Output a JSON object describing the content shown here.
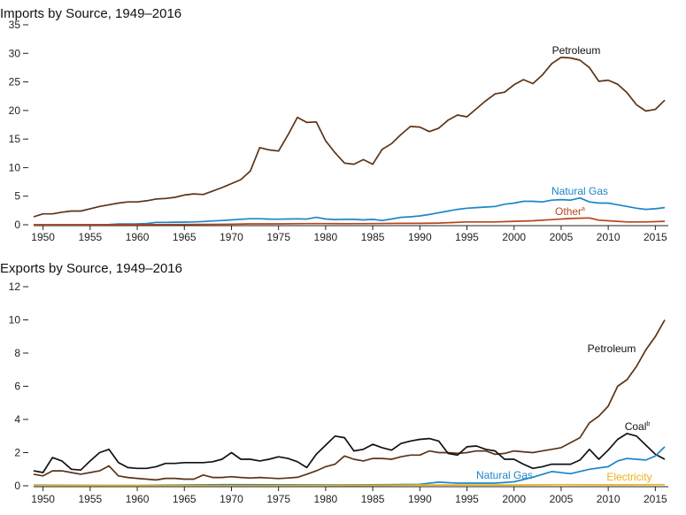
{
  "chart_data": [
    {
      "type": "line",
      "title": "Imports by Source, 1949–2016",
      "xlabel": "",
      "ylabel": "",
      "xlim": [
        1949,
        2016
      ],
      "ylim": [
        0,
        35
      ],
      "yticks": [
        0,
        5,
        10,
        15,
        20,
        25,
        30,
        35
      ],
      "xticks": [
        1950,
        1955,
        1960,
        1965,
        1970,
        1975,
        1980,
        1985,
        1990,
        1995,
        2000,
        2005,
        2010,
        2015
      ],
      "grid": false,
      "series": [
        {
          "name": "Petroleum",
          "color": "#5a3418",
          "x": [
            1949,
            1950,
            1951,
            1952,
            1953,
            1954,
            1955,
            1956,
            1957,
            1958,
            1959,
            1960,
            1961,
            1962,
            1963,
            1964,
            1965,
            1966,
            1967,
            1968,
            1969,
            1970,
            1971,
            1972,
            1973,
            1974,
            1975,
            1976,
            1977,
            1978,
            1979,
            1980,
            1981,
            1982,
            1983,
            1984,
            1985,
            1986,
            1987,
            1988,
            1989,
            1990,
            1991,
            1992,
            1993,
            1994,
            1995,
            1996,
            1997,
            1998,
            1999,
            2000,
            2001,
            2002,
            2003,
            2004,
            2005,
            2006,
            2007,
            2008,
            2009,
            2010,
            2011,
            2012,
            2013,
            2014,
            2015,
            2016
          ],
          "values": [
            1.4,
            1.9,
            1.9,
            2.2,
            2.4,
            2.4,
            2.8,
            3.2,
            3.5,
            3.8,
            4.0,
            4.0,
            4.2,
            4.5,
            4.6,
            4.8,
            5.2,
            5.4,
            5.3,
            5.9,
            6.5,
            7.2,
            7.9,
            9.4,
            13.5,
            13.1,
            12.9,
            15.7,
            18.8,
            17.9,
            18.0,
            14.7,
            12.6,
            10.8,
            10.6,
            11.4,
            10.6,
            13.2,
            14.2,
            15.8,
            17.2,
            17.1,
            16.3,
            16.9,
            18.3,
            19.2,
            18.9,
            20.3,
            21.7,
            22.9,
            23.2,
            24.5,
            25.4,
            24.7,
            26.2,
            28.2,
            29.3,
            29.2,
            28.8,
            27.5,
            25.1,
            25.3,
            24.6,
            23.1,
            21.0,
            19.9,
            20.2,
            21.8
          ]
        },
        {
          "name": "Natural Gas",
          "color": "#1b86c7",
          "x": [
            1949,
            1950,
            1951,
            1952,
            1953,
            1954,
            1955,
            1956,
            1957,
            1958,
            1959,
            1960,
            1961,
            1962,
            1963,
            1964,
            1965,
            1966,
            1967,
            1968,
            1969,
            1970,
            1971,
            1972,
            1973,
            1974,
            1975,
            1976,
            1977,
            1978,
            1979,
            1980,
            1981,
            1982,
            1983,
            1984,
            1985,
            1986,
            1987,
            1988,
            1989,
            1990,
            1991,
            1992,
            1993,
            1994,
            1995,
            1996,
            1997,
            1998,
            1999,
            2000,
            2001,
            2002,
            2003,
            2004,
            2005,
            2006,
            2007,
            2008,
            2009,
            2010,
            2011,
            2012,
            2013,
            2014,
            2015,
            2016
          ],
          "values": [
            0.0,
            0.0,
            0.0,
            0.0,
            0.0,
            0.0,
            0.01,
            0.01,
            0.04,
            0.14,
            0.14,
            0.16,
            0.22,
            0.42,
            0.42,
            0.45,
            0.47,
            0.49,
            0.58,
            0.67,
            0.74,
            0.85,
            0.96,
            1.05,
            1.06,
            0.99,
            0.98,
            1.0,
            1.04,
            0.99,
            1.3,
            1.01,
            0.92,
            0.95,
            0.94,
            0.85,
            0.95,
            0.75,
            1.0,
            1.3,
            1.4,
            1.55,
            1.8,
            2.1,
            2.4,
            2.7,
            2.9,
            3.0,
            3.1,
            3.2,
            3.6,
            3.8,
            4.1,
            4.1,
            4.0,
            4.3,
            4.4,
            4.3,
            4.7,
            4.0,
            3.8,
            3.8,
            3.5,
            3.2,
            2.9,
            2.7,
            2.8,
            3.0
          ]
        },
        {
          "name": "Other",
          "name_suffix": "a",
          "color": "#b5451b",
          "x": [
            1949,
            1955,
            1960,
            1965,
            1970,
            1972,
            1975,
            1978,
            1980,
            1982,
            1985,
            1988,
            1990,
            1992,
            1995,
            1998,
            2000,
            2002,
            2004,
            2006,
            2008,
            2009,
            2010,
            2012,
            2014,
            2016
          ],
          "values": [
            0.0,
            0.01,
            0.02,
            0.05,
            0.1,
            0.15,
            0.15,
            0.2,
            0.2,
            0.18,
            0.2,
            0.25,
            0.25,
            0.3,
            0.5,
            0.5,
            0.6,
            0.7,
            0.9,
            1.1,
            1.2,
            0.8,
            0.7,
            0.5,
            0.5,
            0.6
          ]
        }
      ]
    },
    {
      "type": "line",
      "title": "Exports by Source, 1949–2016",
      "xlabel": "",
      "ylabel": "",
      "xlim": [
        1949,
        2016
      ],
      "ylim": [
        0,
        12
      ],
      "yticks": [
        0,
        2,
        4,
        6,
        8,
        10,
        12
      ],
      "xticks": [
        1950,
        1955,
        1960,
        1965,
        1970,
        1975,
        1980,
        1985,
        1990,
        1995,
        2000,
        2005,
        2010,
        2015
      ],
      "grid": false,
      "series": [
        {
          "name": "Petroleum",
          "color": "#5a3418",
          "x": [
            1949,
            1950,
            1951,
            1952,
            1953,
            1954,
            1955,
            1956,
            1957,
            1958,
            1959,
            1960,
            1961,
            1962,
            1963,
            1964,
            1965,
            1966,
            1967,
            1968,
            1969,
            1970,
            1971,
            1972,
            1973,
            1974,
            1975,
            1976,
            1977,
            1978,
            1979,
            1980,
            1981,
            1982,
            1983,
            1984,
            1985,
            1986,
            1987,
            1988,
            1989,
            1990,
            1991,
            1992,
            1993,
            1994,
            1995,
            1996,
            1997,
            1998,
            1999,
            2000,
            2001,
            2002,
            2003,
            2004,
            2005,
            2006,
            2007,
            2008,
            2009,
            2010,
            2011,
            2012,
            2013,
            2014,
            2015,
            2016
          ],
          "values": [
            0.7,
            0.6,
            0.9,
            0.9,
            0.8,
            0.7,
            0.8,
            0.9,
            1.2,
            0.6,
            0.5,
            0.45,
            0.4,
            0.35,
            0.45,
            0.45,
            0.4,
            0.4,
            0.65,
            0.5,
            0.5,
            0.55,
            0.5,
            0.47,
            0.5,
            0.47,
            0.44,
            0.47,
            0.51,
            0.7,
            0.9,
            1.15,
            1.3,
            1.8,
            1.6,
            1.5,
            1.65,
            1.65,
            1.6,
            1.75,
            1.85,
            1.85,
            2.1,
            2.0,
            2.0,
            1.95,
            2.0,
            2.1,
            2.1,
            1.9,
            1.95,
            2.1,
            2.05,
            2.0,
            2.1,
            2.2,
            2.3,
            2.6,
            2.9,
            3.8,
            4.2,
            4.8,
            6.0,
            6.4,
            7.2,
            8.2,
            9.0,
            10.0
          ]
        },
        {
          "name": "Coal",
          "name_suffix": "b",
          "color": "#111111",
          "x": [
            1949,
            1950,
            1951,
            1952,
            1953,
            1954,
            1955,
            1956,
            1957,
            1958,
            1959,
            1960,
            1961,
            1962,
            1963,
            1964,
            1965,
            1966,
            1967,
            1968,
            1969,
            1970,
            1971,
            1972,
            1973,
            1974,
            1975,
            1976,
            1977,
            1978,
            1979,
            1980,
            1981,
            1982,
            1983,
            1984,
            1985,
            1986,
            1987,
            1988,
            1989,
            1990,
            1991,
            1992,
            1993,
            1994,
            1995,
            1996,
            1997,
            1998,
            1999,
            2000,
            2001,
            2002,
            2003,
            2004,
            2005,
            2006,
            2007,
            2008,
            2009,
            2010,
            2011,
            2012,
            2013,
            2014,
            2015,
            2016
          ],
          "values": [
            0.9,
            0.8,
            1.7,
            1.5,
            1.0,
            0.95,
            1.5,
            2.0,
            2.2,
            1.4,
            1.1,
            1.05,
            1.05,
            1.15,
            1.35,
            1.35,
            1.4,
            1.4,
            1.4,
            1.45,
            1.6,
            2.0,
            1.6,
            1.6,
            1.5,
            1.6,
            1.75,
            1.65,
            1.45,
            1.1,
            1.9,
            2.45,
            3.0,
            2.9,
            2.1,
            2.2,
            2.5,
            2.3,
            2.15,
            2.55,
            2.7,
            2.8,
            2.85,
            2.7,
            1.95,
            1.85,
            2.35,
            2.4,
            2.2,
            2.1,
            1.6,
            1.6,
            1.3,
            1.05,
            1.15,
            1.3,
            1.3,
            1.3,
            1.55,
            2.2,
            1.6,
            2.15,
            2.8,
            3.15,
            3.0,
            2.45,
            1.9,
            1.6
          ]
        },
        {
          "name": "Natural Gas",
          "color": "#1b86c7",
          "x": [
            1949,
            1960,
            1970,
            1980,
            1985,
            1990,
            1992,
            1994,
            1996,
            1998,
            2000,
            2002,
            2004,
            2006,
            2008,
            2010,
            2011,
            2012,
            2013,
            2014,
            2015,
            2016
          ],
          "values": [
            0.03,
            0.02,
            0.07,
            0.05,
            0.06,
            0.09,
            0.22,
            0.16,
            0.16,
            0.16,
            0.24,
            0.52,
            0.86,
            0.73,
            1.0,
            1.15,
            1.5,
            1.65,
            1.6,
            1.55,
            1.8,
            2.35
          ]
        },
        {
          "name": "Electricity",
          "color": "#e8b21c",
          "x": [
            1949,
            1960,
            1970,
            1980,
            1990,
            2000,
            2005,
            2010,
            2016
          ],
          "values": [
            0.01,
            0.01,
            0.01,
            0.01,
            0.05,
            0.05,
            0.07,
            0.06,
            0.07
          ]
        }
      ]
    }
  ]
}
